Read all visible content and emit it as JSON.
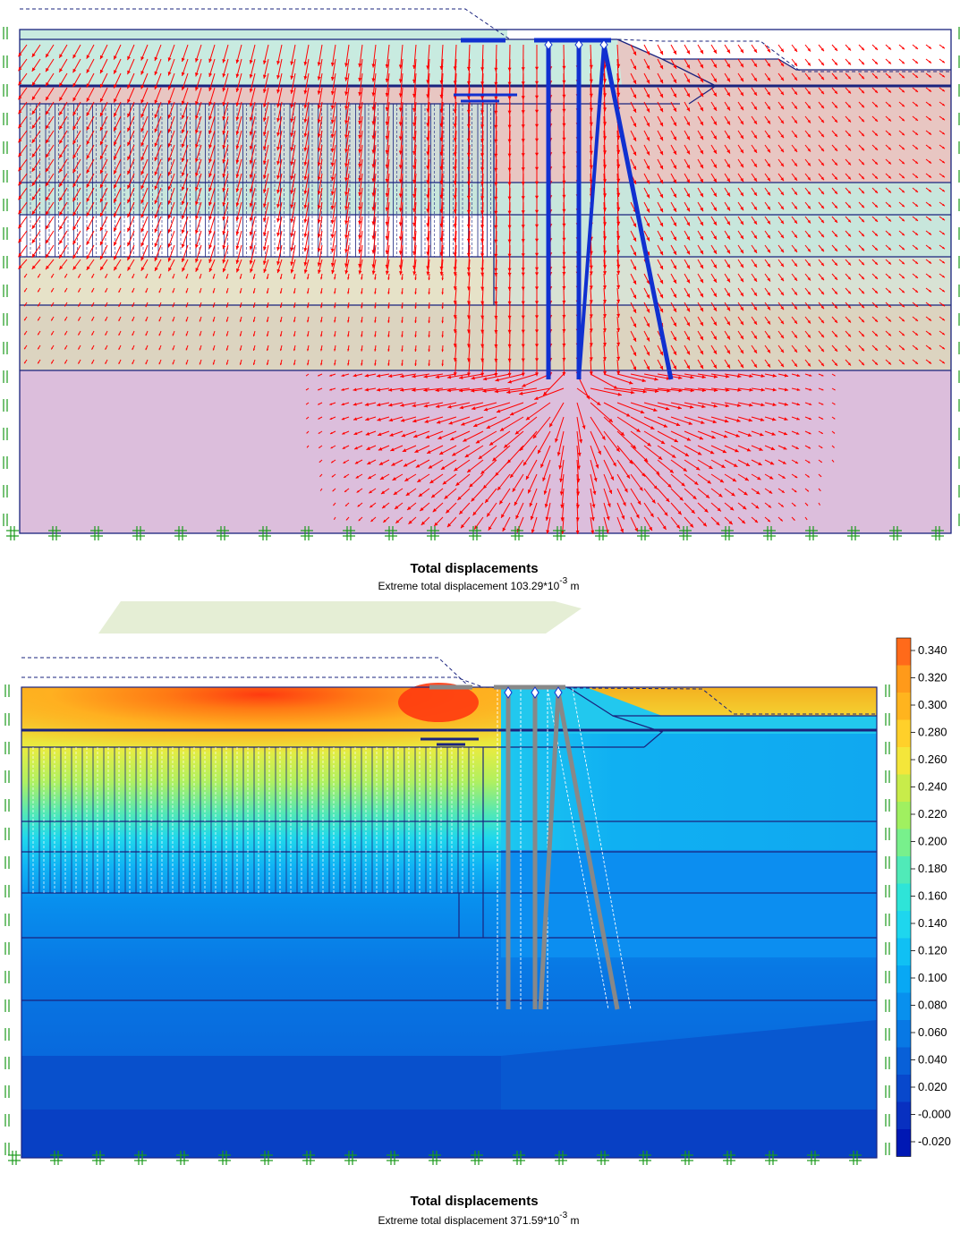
{
  "panel_top": {
    "caption_title": "Total displacements",
    "caption_prefix": "Extreme total displacement 103.29*10",
    "caption_exp": "-3",
    "caption_unit": " m",
    "arrow_color": "#ff0000",
    "layer_colors": [
      "#c8ebe0",
      "#e8c6c2",
      "#c8e0d8",
      "#e6e2c8",
      "#dcd2c2",
      "#dcbedc"
    ],
    "pile_color": "#1030d0"
  },
  "panel_bottom": {
    "caption_title": "Total displacements",
    "caption_prefix": "Extreme total displacement 371.59*10",
    "caption_exp": "-3",
    "caption_unit": " m",
    "pile_color": "#888888",
    "legend": {
      "labels": [
        "0.340",
        "0.320",
        "0.300",
        "0.280",
        "0.260",
        "0.240",
        "0.220",
        "0.200",
        "0.180",
        "0.160",
        "0.140",
        "0.120",
        "0.100",
        "0.080",
        "0.060",
        "0.040",
        "0.020",
        "-0.000",
        "-0.020"
      ],
      "colors": [
        "#ff6a1a",
        "#ff9a1a",
        "#ffb41e",
        "#ffd02a",
        "#f4e63a",
        "#c8ec4a",
        "#a0f060",
        "#78f08c",
        "#50eab8",
        "#2ee4d8",
        "#1ed6ee",
        "#10c0f4",
        "#08a8f4",
        "#0890ee",
        "#0878e4",
        "#0860d8",
        "#0848cc",
        "#0830c0",
        "#0018b4"
      ]
    }
  }
}
